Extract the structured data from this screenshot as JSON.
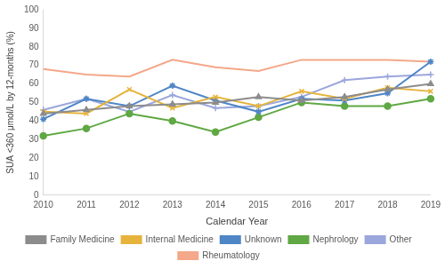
{
  "chart_data": {
    "type": "line",
    "x_label": "Calendar Year",
    "y_label": "SUA <360 μmol/L by 12-months (%)",
    "categories": [
      "2010",
      "2011",
      "2012",
      "2013",
      "2014",
      "2015",
      "2016",
      "2017",
      "2018",
      "2019"
    ],
    "series": [
      {
        "name": "Family Medicine",
        "color": "#8c8c8c",
        "marker": "triangle",
        "values": [
          44,
          46,
          48,
          49,
          50,
          53,
          51,
          53,
          57,
          60
        ]
      },
      {
        "name": "Internal Medicine",
        "color": "#e6b43c",
        "marker": "x",
        "values": [
          45,
          44,
          57,
          47,
          53,
          48,
          56,
          52,
          58,
          56
        ]
      },
      {
        "name": "Unknown",
        "color": "#4f86c6",
        "marker": "star",
        "values": [
          41,
          52,
          48,
          59,
          51,
          45,
          52,
          51,
          55,
          72
        ]
      },
      {
        "name": "Nephrology",
        "color": "#5fa843",
        "marker": "circle",
        "values": [
          32,
          36,
          44,
          40,
          34,
          42,
          50,
          48,
          48,
          52
        ]
      },
      {
        "name": "Other",
        "color": "#9ba6dc",
        "marker": "plus",
        "values": [
          46,
          52,
          45,
          54,
          47,
          48,
          53,
          62,
          64,
          65
        ]
      },
      {
        "name": "Rheumatology",
        "color": "#f4a789",
        "marker": "none",
        "values": [
          68,
          65,
          64,
          73,
          69,
          67,
          73,
          73,
          73,
          72
        ]
      }
    ],
    "ylim": [
      0,
      100
    ],
    "yticks": [
      0,
      10,
      20,
      30,
      40,
      50,
      60,
      70,
      80,
      90,
      100
    ],
    "grid": false,
    "legend": "bottom"
  }
}
